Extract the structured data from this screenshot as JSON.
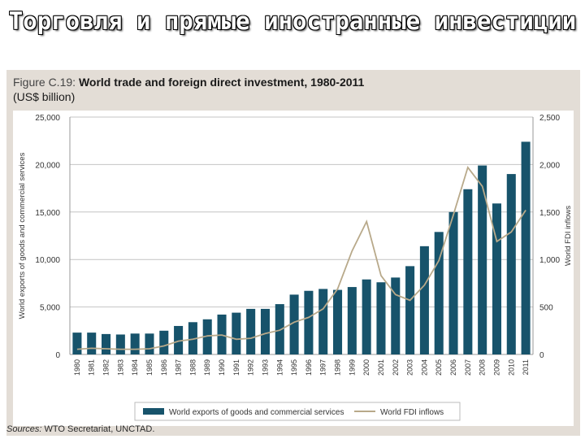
{
  "slide": {
    "title": "Торговля и прямые иностранные инвестиции"
  },
  "figure": {
    "label": "Figure C.19:",
    "title": "World trade and foreign direct investment, 1980-2011",
    "units": "(US$ billion)",
    "source_label": "Sources:",
    "source_text": "WTO Secretariat, UNCTAD."
  },
  "colors": {
    "bar": "#17536b",
    "line": "#b8a98a",
    "grid": "#c4c4c4",
    "panel": "#e3ddd6"
  },
  "chart_data": {
    "type": "bar",
    "categories": [
      "1980",
      "1981",
      "1982",
      "1983",
      "1984",
      "1985",
      "1986",
      "1987",
      "1988",
      "1989",
      "1990",
      "1991",
      "1992",
      "1993",
      "1994",
      "1995",
      "1996",
      "1997",
      "1998",
      "1999",
      "2000",
      "2001",
      "2002",
      "2003",
      "2004",
      "2005",
      "2006",
      "2007",
      "2008",
      "2009",
      "2010",
      "2011"
    ],
    "series": [
      {
        "name": "World exports of goods and commercial services",
        "type": "bar",
        "axis": "left",
        "values": [
          2300,
          2300,
          2150,
          2100,
          2200,
          2200,
          2500,
          3000,
          3400,
          3700,
          4200,
          4400,
          4800,
          4800,
          5300,
          6300,
          6700,
          6900,
          6800,
          7100,
          7900,
          7600,
          8100,
          9300,
          11400,
          12900,
          15000,
          17400,
          19900,
          15900,
          19000,
          22400
        ]
      },
      {
        "name": "World FDI inflows",
        "type": "line",
        "axis": "right",
        "values": [
          55,
          65,
          60,
          55,
          55,
          60,
          90,
          140,
          160,
          195,
          205,
          160,
          170,
          220,
          255,
          340,
          390,
          480,
          690,
          1090,
          1400,
          830,
          630,
          570,
          730,
          990,
          1470,
          1970,
          1770,
          1190,
          1290,
          1520
        ]
      }
    ],
    "ylabel": "World exports of goods and commercial services",
    "y2label": "World FDI inflows",
    "ylim": [
      0,
      25000
    ],
    "y2lim": [
      0,
      2500
    ],
    "yticks": [
      "0",
      "5,000",
      "10,000",
      "15,000",
      "20,000",
      "25,000"
    ],
    "y2ticks": [
      "0",
      "500",
      "1,000",
      "1,500",
      "2,000",
      "2,500"
    ],
    "grid": true,
    "legend_position": "bottom"
  }
}
